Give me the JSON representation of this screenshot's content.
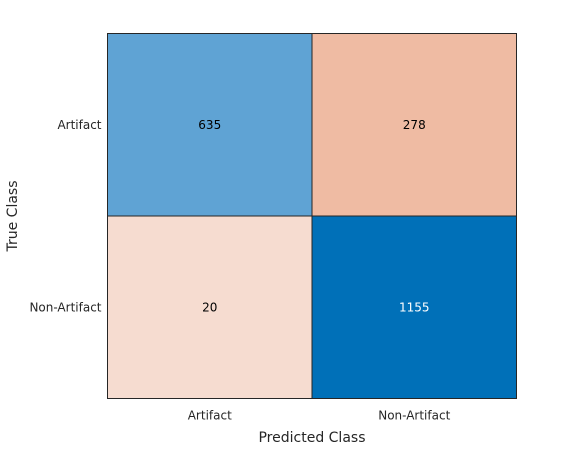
{
  "chart_data": {
    "type": "heatmap",
    "title": "",
    "xlabel": "Predicted Class",
    "ylabel": "True Class",
    "x_categories": [
      "Artifact",
      "Non-Artifact"
    ],
    "y_categories": [
      "Artifact",
      "Non-Artifact"
    ],
    "matrix": [
      [
        635,
        278
      ],
      [
        20,
        1155
      ]
    ],
    "cell_colors": [
      [
        "#5fa3d4",
        "#efbba3"
      ],
      [
        "#f6dcd0",
        "#0070b8"
      ]
    ],
    "cell_text_colors": [
      [
        "#000000",
        "#000000"
      ],
      [
        "#000000",
        "#ffffff"
      ]
    ],
    "grid": false
  }
}
